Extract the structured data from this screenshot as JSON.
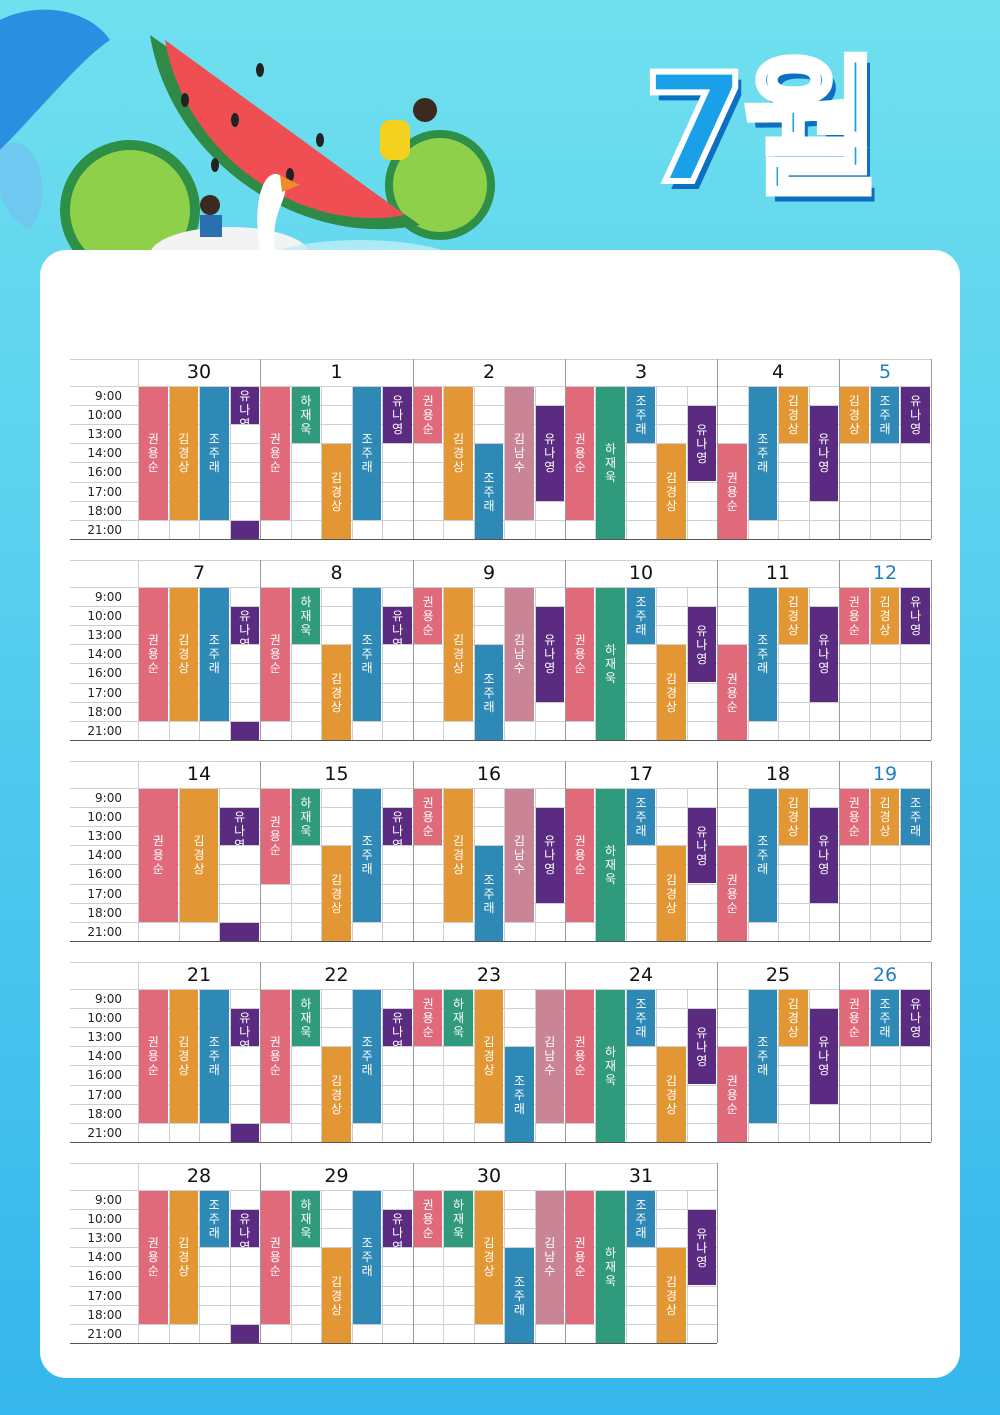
{
  "title": "7월",
  "times": [
    "9:00",
    "10:00",
    "13:00",
    "14:00",
    "16:00",
    "17:00",
    "18:00",
    "21:00"
  ],
  "colors": {
    "권용순": "#e0697a",
    "김경상": "#e39634",
    "조주래": "#2e89b6",
    "유나영": "#5a2b80",
    "하재욱": "#2f9a7c",
    "김남수": "#c98595",
    "weekend": "#1e7fc2"
  },
  "weeks": [
    {
      "days": [
        {
          "label": "30",
          "type": "sun",
          "bars": [
            {
              "n": "권용순",
              "c": 0,
              "s": 0,
              "e": 7
            },
            {
              "n": "김경상",
              "c": 1,
              "s": 0,
              "e": 7
            },
            {
              "n": "조주래",
              "c": 2,
              "s": 0,
              "e": 7
            },
            {
              "n": "유나영",
              "c": 3,
              "s": 0,
              "e": 2
            },
            {
              "n": "",
              "c": 3,
              "s": 7,
              "e": 8,
              "blank": true,
              "col": "유나영"
            }
          ]
        },
        {
          "label": "1",
          "type": "wk",
          "bars": [
            {
              "n": "권용순",
              "c": 0,
              "s": 0,
              "e": 7
            },
            {
              "n": "하재욱",
              "c": 1,
              "s": 0,
              "e": 3
            },
            {
              "n": "김경상",
              "c": 2,
              "s": 3,
              "e": 8
            },
            {
              "n": "조주래",
              "c": 3,
              "s": 0,
              "e": 7
            },
            {
              "n": "유나영",
              "c": 4,
              "s": 0,
              "e": 3
            }
          ]
        },
        {
          "label": "2",
          "type": "wk",
          "bars": [
            {
              "n": "권용순",
              "c": 0,
              "s": 0,
              "e": 3
            },
            {
              "n": "김경상",
              "c": 1,
              "s": 0,
              "e": 7
            },
            {
              "n": "조주래",
              "c": 2,
              "s": 3,
              "e": 8
            },
            {
              "n": "김남수",
              "c": 3,
              "s": 0,
              "e": 7
            },
            {
              "n": "유나영",
              "c": 4,
              "s": 1,
              "e": 6
            }
          ]
        },
        {
          "label": "3",
          "type": "wk",
          "bars": [
            {
              "n": "권용순",
              "c": 0,
              "s": 0,
              "e": 7
            },
            {
              "n": "하재욱",
              "c": 1,
              "s": 0,
              "e": 8
            },
            {
              "n": "조주래",
              "c": 2,
              "s": 0,
              "e": 3
            },
            {
              "n": "김경상",
              "c": 3,
              "s": 3,
              "e": 8
            },
            {
              "n": "유나영",
              "c": 4,
              "s": 1,
              "e": 5
            }
          ]
        },
        {
          "label": "4",
          "type": "fri",
          "bars": [
            {
              "n": "권용순",
              "c": 0,
              "s": 3,
              "e": 8
            },
            {
              "n": "조주래",
              "c": 1,
              "s": 0,
              "e": 7
            },
            {
              "n": "김경상",
              "c": 2,
              "s": 0,
              "e": 3
            },
            {
              "n": "유나영",
              "c": 3,
              "s": 1,
              "e": 6
            }
          ]
        },
        {
          "label": "5",
          "type": "sat",
          "bars": [
            {
              "n": "김경상",
              "c": 0,
              "s": 0,
              "e": 3
            },
            {
              "n": "조주래",
              "c": 1,
              "s": 0,
              "e": 3
            },
            {
              "n": "유나영",
              "c": 2,
              "s": 0,
              "e": 3
            }
          ]
        }
      ]
    },
    {
      "days": [
        {
          "label": "7",
          "type": "sun",
          "bars": [
            {
              "n": "권용순",
              "c": 0,
              "s": 0,
              "e": 7
            },
            {
              "n": "김경상",
              "c": 1,
              "s": 0,
              "e": 7
            },
            {
              "n": "조주래",
              "c": 2,
              "s": 0,
              "e": 7
            },
            {
              "n": "유나영",
              "c": 3,
              "s": 1,
              "e": 3
            },
            {
              "n": "",
              "c": 3,
              "s": 7,
              "e": 8,
              "blank": true,
              "col": "유나영"
            }
          ]
        },
        {
          "label": "8",
          "type": "wk",
          "bars": [
            {
              "n": "권용순",
              "c": 0,
              "s": 0,
              "e": 7
            },
            {
              "n": "하재욱",
              "c": 1,
              "s": 0,
              "e": 3
            },
            {
              "n": "김경상",
              "c": 2,
              "s": 3,
              "e": 8
            },
            {
              "n": "조주래",
              "c": 3,
              "s": 0,
              "e": 7
            },
            {
              "n": "유나영",
              "c": 4,
              "s": 1,
              "e": 3
            }
          ]
        },
        {
          "label": "9",
          "type": "wk",
          "bars": [
            {
              "n": "권용순",
              "c": 0,
              "s": 0,
              "e": 3
            },
            {
              "n": "김경상",
              "c": 1,
              "s": 0,
              "e": 7
            },
            {
              "n": "조주래",
              "c": 2,
              "s": 3,
              "e": 8
            },
            {
              "n": "김남수",
              "c": 3,
              "s": 0,
              "e": 7
            },
            {
              "n": "유나영",
              "c": 4,
              "s": 1,
              "e": 6
            }
          ]
        },
        {
          "label": "10",
          "type": "wk",
          "bars": [
            {
              "n": "권용순",
              "c": 0,
              "s": 0,
              "e": 7
            },
            {
              "n": "하재욱",
              "c": 1,
              "s": 0,
              "e": 8
            },
            {
              "n": "조주래",
              "c": 2,
              "s": 0,
              "e": 3
            },
            {
              "n": "김경상",
              "c": 3,
              "s": 3,
              "e": 8
            },
            {
              "n": "유나영",
              "c": 4,
              "s": 1,
              "e": 5
            }
          ]
        },
        {
          "label": "11",
          "type": "fri",
          "bars": [
            {
              "n": "권용순",
              "c": 0,
              "s": 3,
              "e": 8
            },
            {
              "n": "조주래",
              "c": 1,
              "s": 0,
              "e": 7
            },
            {
              "n": "김경상",
              "c": 2,
              "s": 0,
              "e": 3
            },
            {
              "n": "유나영",
              "c": 3,
              "s": 1,
              "e": 6
            }
          ]
        },
        {
          "label": "12",
          "type": "sat",
          "bars": [
            {
              "n": "권용순",
              "c": 0,
              "s": 0,
              "e": 3
            },
            {
              "n": "김경상",
              "c": 1,
              "s": 0,
              "e": 3
            },
            {
              "n": "유나영",
              "c": 2,
              "s": 0,
              "e": 3
            }
          ]
        }
      ]
    },
    {
      "days": [
        {
          "label": "14",
          "type": "sun3",
          "bars": [
            {
              "n": "권용순",
              "c": 0,
              "s": 0,
              "e": 7
            },
            {
              "n": "김경상",
              "c": 1,
              "s": 0,
              "e": 7
            },
            {
              "n": "유나영",
              "c": 2,
              "s": 1,
              "e": 3
            },
            {
              "n": "",
              "c": 2,
              "s": 7,
              "e": 8,
              "blank": true,
              "col": "유나영"
            }
          ]
        },
        {
          "label": "15",
          "type": "wk",
          "bars": [
            {
              "n": "권용순",
              "c": 0,
              "s": 0,
              "e": 5
            },
            {
              "n": "하재욱",
              "c": 1,
              "s": 0,
              "e": 3
            },
            {
              "n": "김경상",
              "c": 2,
              "s": 3,
              "e": 8
            },
            {
              "n": "조주래",
              "c": 3,
              "s": 0,
              "e": 7
            },
            {
              "n": "유나영",
              "c": 4,
              "s": 1,
              "e": 3
            }
          ]
        },
        {
          "label": "16",
          "type": "wk",
          "bars": [
            {
              "n": "권용순",
              "c": 0,
              "s": 0,
              "e": 3
            },
            {
              "n": "김경상",
              "c": 1,
              "s": 0,
              "e": 7
            },
            {
              "n": "조주래",
              "c": 2,
              "s": 3,
              "e": 8
            },
            {
              "n": "김남수",
              "c": 3,
              "s": 0,
              "e": 7
            },
            {
              "n": "유나영",
              "c": 4,
              "s": 1,
              "e": 6
            }
          ]
        },
        {
          "label": "17",
          "type": "wk",
          "bars": [
            {
              "n": "권용순",
              "c": 0,
              "s": 0,
              "e": 7
            },
            {
              "n": "하재욱",
              "c": 1,
              "s": 0,
              "e": 8
            },
            {
              "n": "조주래",
              "c": 2,
              "s": 0,
              "e": 3
            },
            {
              "n": "김경상",
              "c": 3,
              "s": 3,
              "e": 8
            },
            {
              "n": "유나영",
              "c": 4,
              "s": 1,
              "e": 5
            }
          ]
        },
        {
          "label": "18",
          "type": "fri",
          "bars": [
            {
              "n": "권용순",
              "c": 0,
              "s": 3,
              "e": 8
            },
            {
              "n": "조주래",
              "c": 1,
              "s": 0,
              "e": 7
            },
            {
              "n": "김경상",
              "c": 2,
              "s": 0,
              "e": 3
            },
            {
              "n": "유나영",
              "c": 3,
              "s": 1,
              "e": 6
            }
          ]
        },
        {
          "label": "19",
          "type": "sat",
          "bars": [
            {
              "n": "권용순",
              "c": 0,
              "s": 0,
              "e": 3
            },
            {
              "n": "김경상",
              "c": 1,
              "s": 0,
              "e": 3
            },
            {
              "n": "조주래",
              "c": 2,
              "s": 0,
              "e": 3
            }
          ]
        }
      ]
    },
    {
      "days": [
        {
          "label": "21",
          "type": "sun",
          "bars": [
            {
              "n": "권용순",
              "c": 0,
              "s": 0,
              "e": 7
            },
            {
              "n": "김경상",
              "c": 1,
              "s": 0,
              "e": 7
            },
            {
              "n": "조주래",
              "c": 2,
              "s": 0,
              "e": 7
            },
            {
              "n": "유나영",
              "c": 3,
              "s": 1,
              "e": 3
            },
            {
              "n": "",
              "c": 3,
              "s": 7,
              "e": 8,
              "blank": true,
              "col": "유나영"
            }
          ]
        },
        {
          "label": "22",
          "type": "wk",
          "bars": [
            {
              "n": "권용순",
              "c": 0,
              "s": 0,
              "e": 7
            },
            {
              "n": "하재욱",
              "c": 1,
              "s": 0,
              "e": 3
            },
            {
              "n": "김경상",
              "c": 2,
              "s": 3,
              "e": 8
            },
            {
              "n": "조주래",
              "c": 3,
              "s": 0,
              "e": 7
            },
            {
              "n": "유나영",
              "c": 4,
              "s": 1,
              "e": 3
            }
          ]
        },
        {
          "label": "23",
          "type": "wk",
          "bars": [
            {
              "n": "권용순",
              "c": 0,
              "s": 0,
              "e": 3
            },
            {
              "n": "하재욱",
              "c": 1,
              "s": 0,
              "e": 3
            },
            {
              "n": "김경상",
              "c": 2,
              "s": 0,
              "e": 7
            },
            {
              "n": "조주래",
              "c": 3,
              "s": 3,
              "e": 8
            },
            {
              "n": "김남수",
              "c": 4,
              "s": 0,
              "e": 7
            },
            {
              "n": "유나영",
              "c": 5,
              "s": 1,
              "e": 6
            }
          ]
        },
        {
          "label": "24",
          "type": "wk",
          "bars": [
            {
              "n": "권용순",
              "c": 0,
              "s": 0,
              "e": 7
            },
            {
              "n": "하재욱",
              "c": 1,
              "s": 0,
              "e": 8
            },
            {
              "n": "조주래",
              "c": 2,
              "s": 0,
              "e": 3
            },
            {
              "n": "김경상",
              "c": 3,
              "s": 3,
              "e": 8
            },
            {
              "n": "유나영",
              "c": 4,
              "s": 1,
              "e": 5
            }
          ]
        },
        {
          "label": "25",
          "type": "fri",
          "bars": [
            {
              "n": "권용순",
              "c": 0,
              "s": 3,
              "e": 8
            },
            {
              "n": "조주래",
              "c": 1,
              "s": 0,
              "e": 7
            },
            {
              "n": "김경상",
              "c": 2,
              "s": 0,
              "e": 3
            },
            {
              "n": "유나영",
              "c": 3,
              "s": 1,
              "e": 6
            }
          ]
        },
        {
          "label": "26",
          "type": "sat",
          "bars": [
            {
              "n": "권용순",
              "c": 0,
              "s": 0,
              "e": 3
            },
            {
              "n": "조주래",
              "c": 1,
              "s": 0,
              "e": 3
            },
            {
              "n": "유나영",
              "c": 2,
              "s": 0,
              "e": 3
            }
          ]
        }
      ]
    },
    {
      "days": [
        {
          "label": "28",
          "type": "sun",
          "bars": [
            {
              "n": "권용순",
              "c": 0,
              "s": 0,
              "e": 7
            },
            {
              "n": "김경상",
              "c": 1,
              "s": 0,
              "e": 7
            },
            {
              "n": "조주래",
              "c": 2,
              "s": 0,
              "e": 3
            },
            {
              "n": "유나영",
              "c": 3,
              "s": 1,
              "e": 3
            },
            {
              "n": "",
              "c": 3,
              "s": 7,
              "e": 8,
              "blank": true,
              "col": "유나영"
            }
          ]
        },
        {
          "label": "29",
          "type": "wk",
          "bars": [
            {
              "n": "권용순",
              "c": 0,
              "s": 0,
              "e": 7
            },
            {
              "n": "하재욱",
              "c": 1,
              "s": 0,
              "e": 3
            },
            {
              "n": "김경상",
              "c": 2,
              "s": 3,
              "e": 8
            },
            {
              "n": "조주래",
              "c": 3,
              "s": 0,
              "e": 7
            },
            {
              "n": "유나영",
              "c": 4,
              "s": 1,
              "e": 3
            }
          ]
        },
        {
          "label": "30",
          "type": "wk",
          "bars": [
            {
              "n": "권용순",
              "c": 0,
              "s": 0,
              "e": 3
            },
            {
              "n": "하재욱",
              "c": 1,
              "s": 0,
              "e": 3
            },
            {
              "n": "김경상",
              "c": 2,
              "s": 0,
              "e": 7
            },
            {
              "n": "조주래",
              "c": 3,
              "s": 3,
              "e": 8
            },
            {
              "n": "김남수",
              "c": 4,
              "s": 0,
              "e": 7
            },
            {
              "n": "유나영",
              "c": 5,
              "s": 1,
              "e": 6
            }
          ]
        },
        {
          "label": "31",
          "type": "wk",
          "bars": [
            {
              "n": "권용순",
              "c": 0,
              "s": 0,
              "e": 7
            },
            {
              "n": "하재욱",
              "c": 1,
              "s": 0,
              "e": 8
            },
            {
              "n": "조주래",
              "c": 2,
              "s": 0,
              "e": 3
            },
            {
              "n": "김경상",
              "c": 3,
              "s": 3,
              "e": 8
            },
            {
              "n": "유나영",
              "c": 4,
              "s": 1,
              "e": 5
            }
          ]
        }
      ]
    }
  ]
}
